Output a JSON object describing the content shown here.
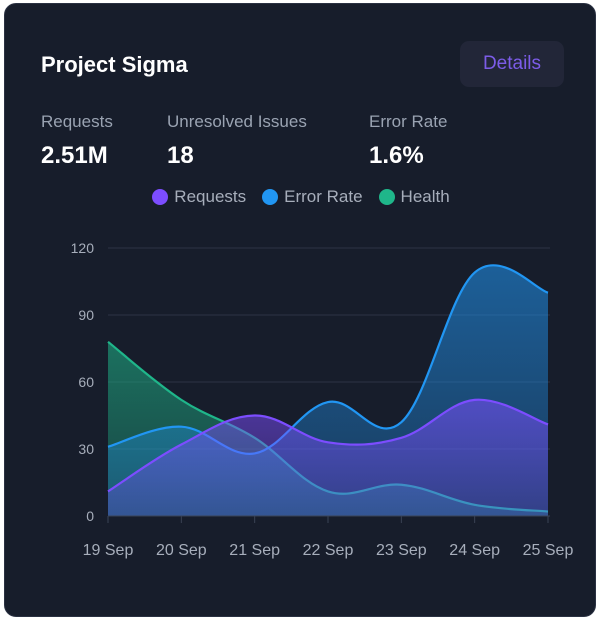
{
  "card": {
    "title": "Project Sigma",
    "details_label": "Details"
  },
  "stats": [
    {
      "label": "Requests",
      "value": "2.51M"
    },
    {
      "label": "Unresolved Issues",
      "value": "18"
    },
    {
      "label": "Error Rate",
      "value": "1.6%"
    }
  ],
  "colors": {
    "card_background": "#171d2b",
    "requests": "#7c4dff",
    "error_rate": "#2196f3",
    "health": "#1fb68a"
  },
  "chart_data": {
    "type": "area",
    "categories": [
      "19 Sep",
      "20 Sep",
      "21 Sep",
      "22 Sep",
      "23 Sep",
      "24 Sep",
      "25 Sep"
    ],
    "series": [
      {
        "name": "Requests",
        "color": "#7c4dff",
        "values": [
          11,
          32,
          45,
          33,
          35,
          52,
          41
        ]
      },
      {
        "name": "Error Rate",
        "color": "#2196f3",
        "values": [
          31,
          40,
          28,
          51,
          42,
          109,
          100
        ]
      },
      {
        "name": "Health",
        "color": "#1fb68a",
        "values": [
          78,
          52,
          35,
          11,
          14,
          5,
          2
        ]
      }
    ],
    "ylim": [
      0,
      120
    ],
    "yticks": [
      0,
      30,
      60,
      90,
      120
    ],
    "grid": true,
    "legend_position": "top-center"
  }
}
